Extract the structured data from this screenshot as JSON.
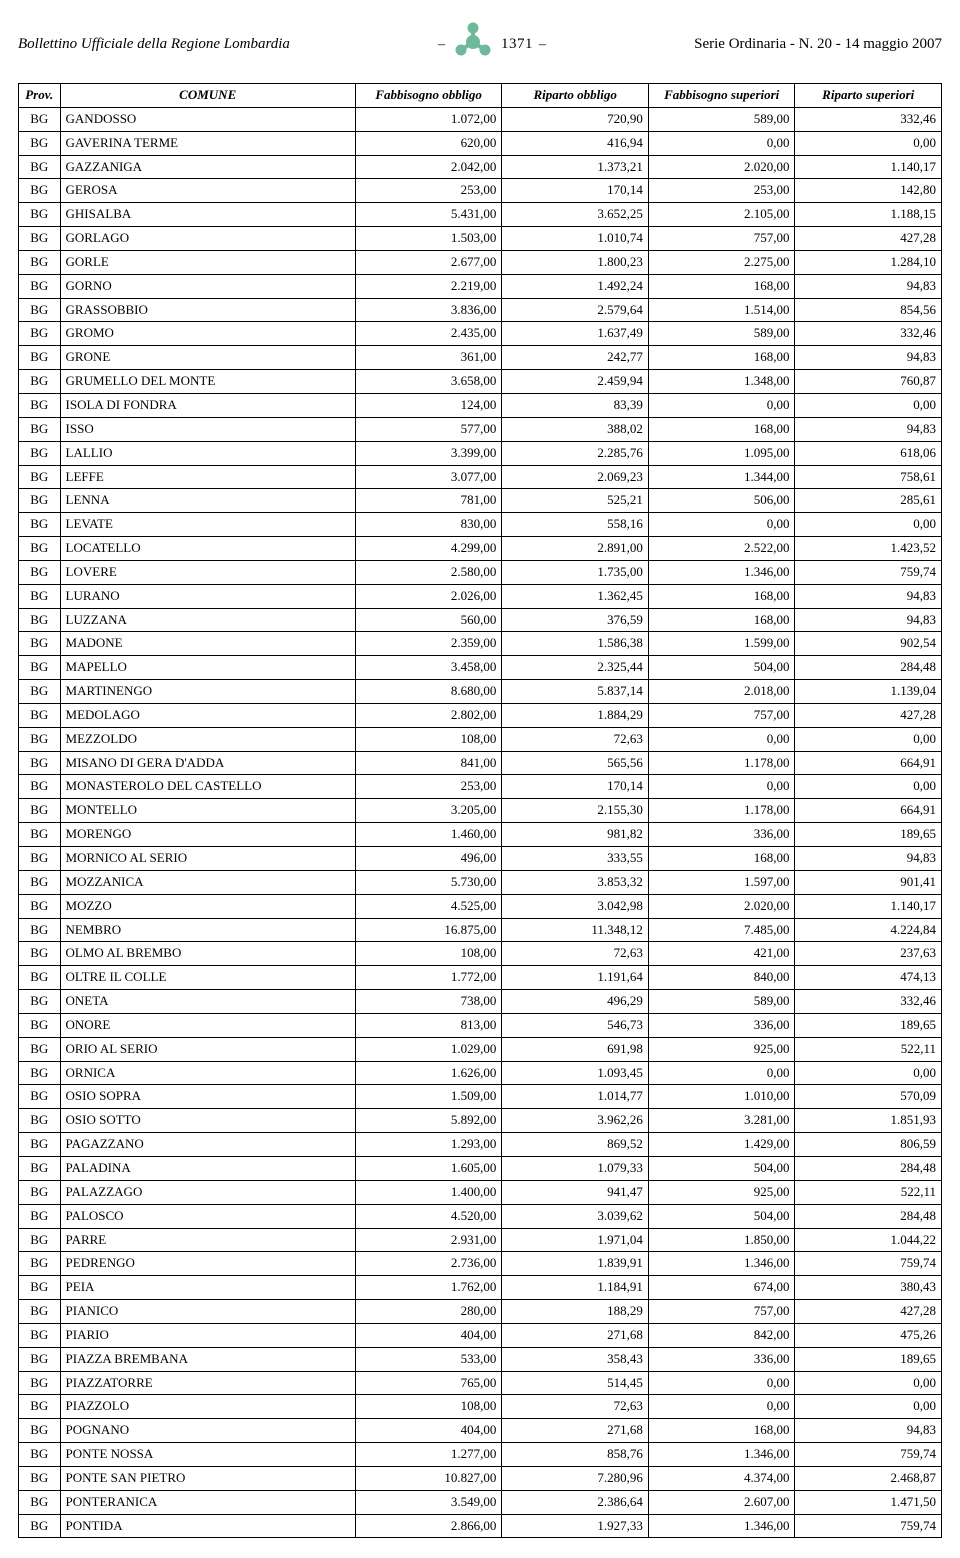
{
  "header": {
    "left": "Bollettino Ufficiale della Regione Lombardia",
    "page_number": "1371",
    "right": "Serie Ordinaria - N. 20 - 14 maggio 2007",
    "logo_color": "#6fb99a"
  },
  "table": {
    "columns": [
      "Prov.",
      "COMUNE",
      "Fabbisogno obbligo",
      "Riparto obbligo",
      "Fabbisogno superiori",
      "Riparto superiori"
    ],
    "rows": [
      [
        "BG",
        "GANDOSSO",
        "1.072,00",
        "720,90",
        "589,00",
        "332,46"
      ],
      [
        "BG",
        "GAVERINA TERME",
        "620,00",
        "416,94",
        "0,00",
        "0,00"
      ],
      [
        "BG",
        "GAZZANIGA",
        "2.042,00",
        "1.373,21",
        "2.020,00",
        "1.140,17"
      ],
      [
        "BG",
        "GEROSA",
        "253,00",
        "170,14",
        "253,00",
        "142,80"
      ],
      [
        "BG",
        "GHISALBA",
        "5.431,00",
        "3.652,25",
        "2.105,00",
        "1.188,15"
      ],
      [
        "BG",
        "GORLAGO",
        "1.503,00",
        "1.010,74",
        "757,00",
        "427,28"
      ],
      [
        "BG",
        "GORLE",
        "2.677,00",
        "1.800,23",
        "2.275,00",
        "1.284,10"
      ],
      [
        "BG",
        "GORNO",
        "2.219,00",
        "1.492,24",
        "168,00",
        "94,83"
      ],
      [
        "BG",
        "GRASSOBBIO",
        "3.836,00",
        "2.579,64",
        "1.514,00",
        "854,56"
      ],
      [
        "BG",
        "GROMO",
        "2.435,00",
        "1.637,49",
        "589,00",
        "332,46"
      ],
      [
        "BG",
        "GRONE",
        "361,00",
        "242,77",
        "168,00",
        "94,83"
      ],
      [
        "BG",
        "GRUMELLO DEL MONTE",
        "3.658,00",
        "2.459,94",
        "1.348,00",
        "760,87"
      ],
      [
        "BG",
        "ISOLA DI FONDRA",
        "124,00",
        "83,39",
        "0,00",
        "0,00"
      ],
      [
        "BG",
        "ISSO",
        "577,00",
        "388,02",
        "168,00",
        "94,83"
      ],
      [
        "BG",
        "LALLIO",
        "3.399,00",
        "2.285,76",
        "1.095,00",
        "618,06"
      ],
      [
        "BG",
        "LEFFE",
        "3.077,00",
        "2.069,23",
        "1.344,00",
        "758,61"
      ],
      [
        "BG",
        "LENNA",
        "781,00",
        "525,21",
        "506,00",
        "285,61"
      ],
      [
        "BG",
        "LEVATE",
        "830,00",
        "558,16",
        "0,00",
        "0,00"
      ],
      [
        "BG",
        "LOCATELLO",
        "4.299,00",
        "2.891,00",
        "2.522,00",
        "1.423,52"
      ],
      [
        "BG",
        "LOVERE",
        "2.580,00",
        "1.735,00",
        "1.346,00",
        "759,74"
      ],
      [
        "BG",
        "LURANO",
        "2.026,00",
        "1.362,45",
        "168,00",
        "94,83"
      ],
      [
        "BG",
        "LUZZANA",
        "560,00",
        "376,59",
        "168,00",
        "94,83"
      ],
      [
        "BG",
        "MADONE",
        "2.359,00",
        "1.586,38",
        "1.599,00",
        "902,54"
      ],
      [
        "BG",
        "MAPELLO",
        "3.458,00",
        "2.325,44",
        "504,00",
        "284,48"
      ],
      [
        "BG",
        "MARTINENGO",
        "8.680,00",
        "5.837,14",
        "2.018,00",
        "1.139,04"
      ],
      [
        "BG",
        "MEDOLAGO",
        "2.802,00",
        "1.884,29",
        "757,00",
        "427,28"
      ],
      [
        "BG",
        "MEZZOLDO",
        "108,00",
        "72,63",
        "0,00",
        "0,00"
      ],
      [
        "BG",
        "MISANO DI GERA D'ADDA",
        "841,00",
        "565,56",
        "1.178,00",
        "664,91"
      ],
      [
        "BG",
        "MONASTEROLO DEL CASTELLO",
        "253,00",
        "170,14",
        "0,00",
        "0,00"
      ],
      [
        "BG",
        "MONTELLO",
        "3.205,00",
        "2.155,30",
        "1.178,00",
        "664,91"
      ],
      [
        "BG",
        "MORENGO",
        "1.460,00",
        "981,82",
        "336,00",
        "189,65"
      ],
      [
        "BG",
        "MORNICO AL SERIO",
        "496,00",
        "333,55",
        "168,00",
        "94,83"
      ],
      [
        "BG",
        "MOZZANICA",
        "5.730,00",
        "3.853,32",
        "1.597,00",
        "901,41"
      ],
      [
        "BG",
        "MOZZO",
        "4.525,00",
        "3.042,98",
        "2.020,00",
        "1.140,17"
      ],
      [
        "BG",
        "NEMBRO",
        "16.875,00",
        "11.348,12",
        "7.485,00",
        "4.224,84"
      ],
      [
        "BG",
        "OLMO AL BREMBO",
        "108,00",
        "72,63",
        "421,00",
        "237,63"
      ],
      [
        "BG",
        "OLTRE IL COLLE",
        "1.772,00",
        "1.191,64",
        "840,00",
        "474,13"
      ],
      [
        "BG",
        "ONETA",
        "738,00",
        "496,29",
        "589,00",
        "332,46"
      ],
      [
        "BG",
        "ONORE",
        "813,00",
        "546,73",
        "336,00",
        "189,65"
      ],
      [
        "BG",
        "ORIO AL SERIO",
        "1.029,00",
        "691,98",
        "925,00",
        "522,11"
      ],
      [
        "BG",
        "ORNICA",
        "1.626,00",
        "1.093,45",
        "0,00",
        "0,00"
      ],
      [
        "BG",
        "OSIO SOPRA",
        "1.509,00",
        "1.014,77",
        "1.010,00",
        "570,09"
      ],
      [
        "BG",
        "OSIO SOTTO",
        "5.892,00",
        "3.962,26",
        "3.281,00",
        "1.851,93"
      ],
      [
        "BG",
        "PAGAZZANO",
        "1.293,00",
        "869,52",
        "1.429,00",
        "806,59"
      ],
      [
        "BG",
        "PALADINA",
        "1.605,00",
        "1.079,33",
        "504,00",
        "284,48"
      ],
      [
        "BG",
        "PALAZZAGO",
        "1.400,00",
        "941,47",
        "925,00",
        "522,11"
      ],
      [
        "BG",
        "PALOSCO",
        "4.520,00",
        "3.039,62",
        "504,00",
        "284,48"
      ],
      [
        "BG",
        "PARRE",
        "2.931,00",
        "1.971,04",
        "1.850,00",
        "1.044,22"
      ],
      [
        "BG",
        "PEDRENGO",
        "2.736,00",
        "1.839,91",
        "1.346,00",
        "759,74"
      ],
      [
        "BG",
        "PEIA",
        "1.762,00",
        "1.184,91",
        "674,00",
        "380,43"
      ],
      [
        "BG",
        "PIANICO",
        "280,00",
        "188,29",
        "757,00",
        "427,28"
      ],
      [
        "BG",
        "PIARIO",
        "404,00",
        "271,68",
        "842,00",
        "475,26"
      ],
      [
        "BG",
        "PIAZZA BREMBANA",
        "533,00",
        "358,43",
        "336,00",
        "189,65"
      ],
      [
        "BG",
        "PIAZZATORRE",
        "765,00",
        "514,45",
        "0,00",
        "0,00"
      ],
      [
        "BG",
        "PIAZZOLO",
        "108,00",
        "72,63",
        "0,00",
        "0,00"
      ],
      [
        "BG",
        "POGNANO",
        "404,00",
        "271,68",
        "168,00",
        "94,83"
      ],
      [
        "BG",
        "PONTE NOSSA",
        "1.277,00",
        "858,76",
        "1.346,00",
        "759,74"
      ],
      [
        "BG",
        "PONTE SAN PIETRO",
        "10.827,00",
        "7.280,96",
        "4.374,00",
        "2.468,87"
      ],
      [
        "BG",
        "PONTERANICA",
        "3.549,00",
        "2.386,64",
        "2.607,00",
        "1.471,50"
      ],
      [
        "BG",
        "PONTIDA",
        "2.866,00",
        "1.927,33",
        "1.346,00",
        "759,74"
      ]
    ]
  }
}
